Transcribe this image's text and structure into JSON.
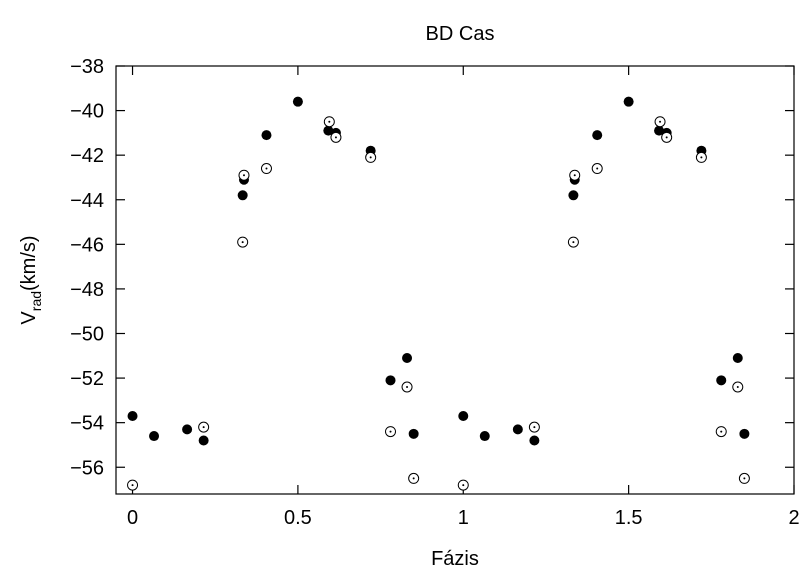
{
  "chart_data": {
    "type": "scatter",
    "title": "BD Cas",
    "xlabel": "Fázis",
    "ylabel": {
      "base": "V",
      "subscript": "rad",
      "rest": "(km/s)"
    },
    "xlim": [
      -0.05,
      2.0
    ],
    "ylim": [
      -57.2,
      -38
    ],
    "x_ticks": [
      0,
      0.5,
      1,
      1.5,
      2
    ],
    "x_tick_labels": [
      "0",
      "0.5",
      "1",
      "1.5",
      "2"
    ],
    "y_ticks": [
      -56,
      -54,
      -52,
      -50,
      -48,
      -46,
      -44,
      -42,
      -40,
      -38
    ],
    "y_tick_labels": [
      "−56",
      "−54",
      "−52",
      "−50",
      "−48",
      "−46",
      "−44",
      "−42",
      "−40",
      "−38"
    ],
    "grid": false,
    "legend": null,
    "series": [
      {
        "marker": "filled-circle",
        "points": [
          [
            0.0,
            -53.7
          ],
          [
            0.065,
            -54.6
          ],
          [
            0.165,
            -54.3
          ],
          [
            0.215,
            -54.8
          ],
          [
            0.333,
            -43.8
          ],
          [
            0.337,
            -43.1
          ],
          [
            0.405,
            -41.1
          ],
          [
            0.5,
            -39.6
          ],
          [
            0.592,
            -40.9
          ],
          [
            0.615,
            -41.0
          ],
          [
            0.72,
            -41.8
          ],
          [
            0.78,
            -52.1
          ],
          [
            0.83,
            -51.1
          ],
          [
            0.85,
            -54.5
          ],
          [
            1.0,
            -53.7
          ],
          [
            1.065,
            -54.6
          ],
          [
            1.165,
            -54.3
          ],
          [
            1.215,
            -54.8
          ],
          [
            1.333,
            -43.8
          ],
          [
            1.337,
            -43.1
          ],
          [
            1.405,
            -41.1
          ],
          [
            1.5,
            -39.6
          ],
          [
            1.592,
            -40.9
          ],
          [
            1.615,
            -41.0
          ],
          [
            1.72,
            -41.8
          ],
          [
            1.78,
            -52.1
          ],
          [
            1.83,
            -51.1
          ],
          [
            1.85,
            -54.5
          ]
        ]
      },
      {
        "marker": "open-circle-dot",
        "points": [
          [
            0.0,
            -56.8
          ],
          [
            0.215,
            -54.2
          ],
          [
            0.333,
            -45.9
          ],
          [
            0.337,
            -42.9
          ],
          [
            0.405,
            -42.6
          ],
          [
            0.595,
            -40.5
          ],
          [
            0.615,
            -41.2
          ],
          [
            0.72,
            -42.1
          ],
          [
            0.78,
            -54.4
          ],
          [
            0.83,
            -52.4
          ],
          [
            0.85,
            -56.5
          ],
          [
            1.0,
            -56.8
          ],
          [
            1.215,
            -54.2
          ],
          [
            1.333,
            -45.9
          ],
          [
            1.337,
            -42.9
          ],
          [
            1.405,
            -42.6
          ],
          [
            1.595,
            -40.5
          ],
          [
            1.615,
            -41.2
          ],
          [
            1.72,
            -42.1
          ],
          [
            1.78,
            -54.4
          ],
          [
            1.83,
            -52.4
          ],
          [
            1.85,
            -56.5
          ]
        ]
      }
    ]
  }
}
